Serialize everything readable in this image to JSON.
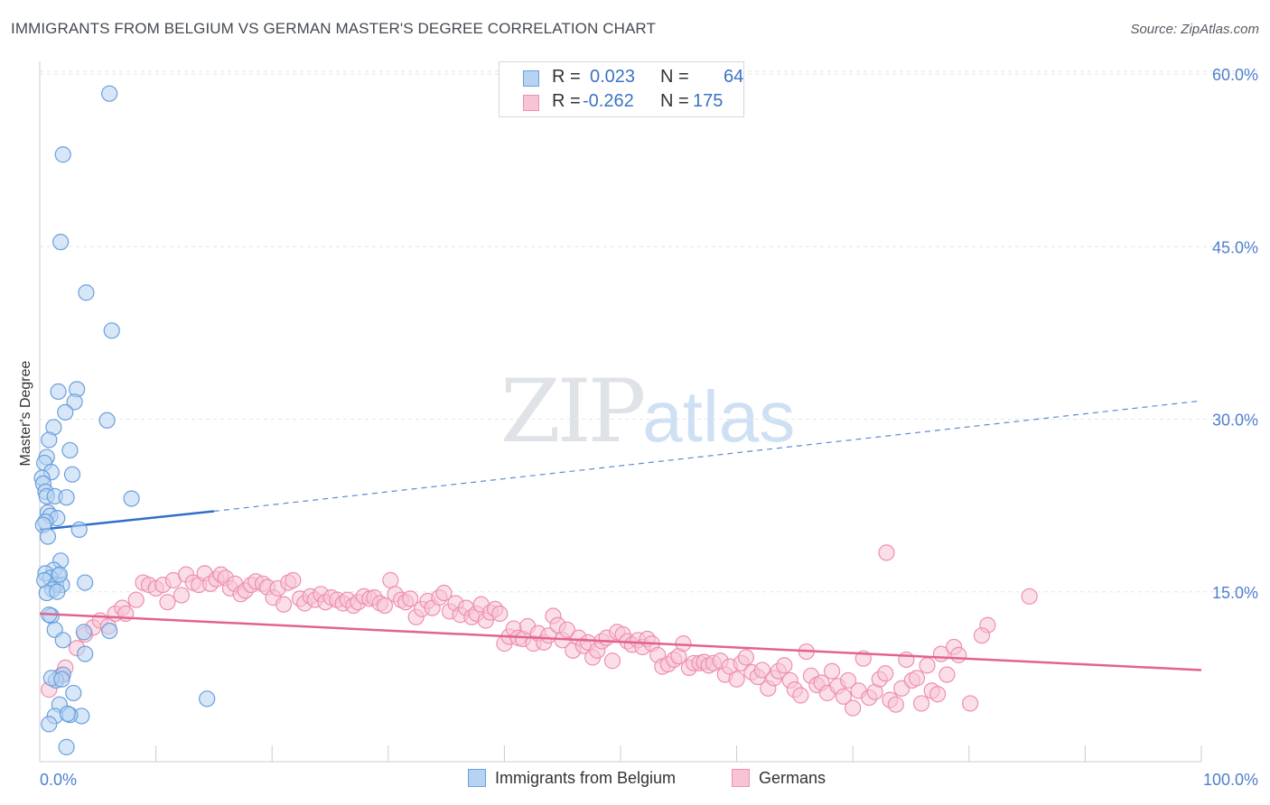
{
  "title": "IMMIGRANTS FROM BELGIUM VS GERMAN MASTER'S DEGREE CORRELATION CHART",
  "source": "Source: ZipAtlas.com",
  "watermark": {
    "zip": "ZIP",
    "atlas": "atlas"
  },
  "legend": {
    "rows": [
      {
        "r_label": "R =",
        "r_value": "0.023",
        "n_label": "N =",
        "n_value": "64"
      },
      {
        "r_label": "R =",
        "r_value": "-0.262",
        "n_label": "N =",
        "n_value": "175"
      }
    ]
  },
  "colors": {
    "blue_fill": "#b7d3f2",
    "blue_stroke": "#6a9fdc",
    "blue_line": "#2f6fc9",
    "pink_fill": "#f7c4d5",
    "pink_stroke": "#ee8fae",
    "pink_line": "#e2638f",
    "tick_text": "#4f7fcf",
    "grid": "#e3e6ea"
  },
  "chart_data": {
    "type": "scatter",
    "title": "IMMIGRANTS FROM BELGIUM VS GERMAN MASTER'S DEGREE CORRELATION CHART",
    "xlabel": "",
    "ylabel": "Master's Degree",
    "xlim": [
      0,
      100
    ],
    "ylim": [
      0,
      62
    ],
    "x_tick_labels": [
      "0.0%",
      "100.0%"
    ],
    "y_ticks": [
      15,
      30,
      45,
      60
    ],
    "y_tick_labels": [
      "15.0%",
      "30.0%",
      "45.0%",
      "60.0%"
    ],
    "grid": "horizontal dashed",
    "legend_position": "top-center",
    "series": [
      {
        "name": "Immigrants from Belgium",
        "r": 0.023,
        "n": 64,
        "trend": {
          "x0": 0,
          "y0": 20.4,
          "x1": 15,
          "y1": 22.0,
          "dashed_to": [
            100,
            31.6
          ]
        },
        "points": [
          [
            6.0,
            58.3
          ],
          [
            2.0,
            53.0
          ],
          [
            1.8,
            45.4
          ],
          [
            4.0,
            41.0
          ],
          [
            6.2,
            37.7
          ],
          [
            3.2,
            32.6
          ],
          [
            1.6,
            32.4
          ],
          [
            3.0,
            31.5
          ],
          [
            2.2,
            30.6
          ],
          [
            5.8,
            29.9
          ],
          [
            1.2,
            29.3
          ],
          [
            0.8,
            28.2
          ],
          [
            2.6,
            27.3
          ],
          [
            0.6,
            26.7
          ],
          [
            0.4,
            26.2
          ],
          [
            2.8,
            25.2
          ],
          [
            1.0,
            25.4
          ],
          [
            0.2,
            24.9
          ],
          [
            0.3,
            24.4
          ],
          [
            0.5,
            23.7
          ],
          [
            0.6,
            23.3
          ],
          [
            1.3,
            23.3
          ],
          [
            2.3,
            23.2
          ],
          [
            7.9,
            23.1
          ],
          [
            0.7,
            21.9
          ],
          [
            0.9,
            21.6
          ],
          [
            1.5,
            21.4
          ],
          [
            0.5,
            21.1
          ],
          [
            0.3,
            20.8
          ],
          [
            3.4,
            20.4
          ],
          [
            0.7,
            19.8
          ],
          [
            1.8,
            17.7
          ],
          [
            1.2,
            16.9
          ],
          [
            0.5,
            16.6
          ],
          [
            1.6,
            16.4
          ],
          [
            0.9,
            16.2
          ],
          [
            0.4,
            16.0
          ],
          [
            1.4,
            15.6
          ],
          [
            3.9,
            15.8
          ],
          [
            1.9,
            15.6
          ],
          [
            1.1,
            15.2
          ],
          [
            0.6,
            14.9
          ],
          [
            1.5,
            15.0
          ],
          [
            1.0,
            12.9
          ],
          [
            1.3,
            11.7
          ],
          [
            3.8,
            11.5
          ],
          [
            6.0,
            11.6
          ],
          [
            2.0,
            10.8
          ],
          [
            3.9,
            9.6
          ],
          [
            2.0,
            7.8
          ],
          [
            1.4,
            7.3
          ],
          [
            1.0,
            7.5
          ],
          [
            2.9,
            6.2
          ],
          [
            14.4,
            5.7
          ],
          [
            1.7,
            5.2
          ],
          [
            1.3,
            4.2
          ],
          [
            3.6,
            4.2
          ],
          [
            2.6,
            4.3
          ],
          [
            0.8,
            3.5
          ],
          [
            2.3,
            1.5
          ],
          [
            1.9,
            7.4
          ],
          [
            0.8,
            13.0
          ],
          [
            1.7,
            16.5
          ],
          [
            2.4,
            4.4
          ]
        ]
      },
      {
        "name": "Germans",
        "r": -0.262,
        "n": 175,
        "trend": {
          "x0": 0,
          "y0": 13.1,
          "x1": 100,
          "y1": 8.2
        },
        "points": [
          [
            0.8,
            6.5
          ],
          [
            1.8,
            7.7
          ],
          [
            2.2,
            8.4
          ],
          [
            3.2,
            10.1
          ],
          [
            3.9,
            11.3
          ],
          [
            4.6,
            11.9
          ],
          [
            5.2,
            12.5
          ],
          [
            5.9,
            12.0
          ],
          [
            6.5,
            13.1
          ],
          [
            7.1,
            13.6
          ],
          [
            7.4,
            13.1
          ],
          [
            8.3,
            14.3
          ],
          [
            8.9,
            15.8
          ],
          [
            9.4,
            15.6
          ],
          [
            10.0,
            15.3
          ],
          [
            10.6,
            15.6
          ],
          [
            11.0,
            14.1
          ],
          [
            11.5,
            16.0
          ],
          [
            12.2,
            14.7
          ],
          [
            12.6,
            16.5
          ],
          [
            13.2,
            15.8
          ],
          [
            13.7,
            15.6
          ],
          [
            14.2,
            16.6
          ],
          [
            14.7,
            15.7
          ],
          [
            15.2,
            16.1
          ],
          [
            15.6,
            16.5
          ],
          [
            16.0,
            16.2
          ],
          [
            16.4,
            15.3
          ],
          [
            16.8,
            15.7
          ],
          [
            17.3,
            14.8
          ],
          [
            17.7,
            15.1
          ],
          [
            18.2,
            15.6
          ],
          [
            18.6,
            15.9
          ],
          [
            19.2,
            15.7
          ],
          [
            19.6,
            15.4
          ],
          [
            20.1,
            14.5
          ],
          [
            20.5,
            15.3
          ],
          [
            21.0,
            13.9
          ],
          [
            21.4,
            15.8
          ],
          [
            21.8,
            16.0
          ],
          [
            22.4,
            14.4
          ],
          [
            22.8,
            14.0
          ],
          [
            23.3,
            14.6
          ],
          [
            23.7,
            14.3
          ],
          [
            24.2,
            14.8
          ],
          [
            24.6,
            14.1
          ],
          [
            25.1,
            14.5
          ],
          [
            25.6,
            14.3
          ],
          [
            26.1,
            14.0
          ],
          [
            26.5,
            14.3
          ],
          [
            27.0,
            13.8
          ],
          [
            27.4,
            14.1
          ],
          [
            27.9,
            14.6
          ],
          [
            28.4,
            14.4
          ],
          [
            28.8,
            14.5
          ],
          [
            29.3,
            14.0
          ],
          [
            29.7,
            13.8
          ],
          [
            30.2,
            16.0
          ],
          [
            30.6,
            14.8
          ],
          [
            31.1,
            14.3
          ],
          [
            31.5,
            14.1
          ],
          [
            31.9,
            14.4
          ],
          [
            32.4,
            12.8
          ],
          [
            32.9,
            13.5
          ],
          [
            33.4,
            14.2
          ],
          [
            33.8,
            13.6
          ],
          [
            34.4,
            14.5
          ],
          [
            34.8,
            14.9
          ],
          [
            35.3,
            13.3
          ],
          [
            35.8,
            14.0
          ],
          [
            36.2,
            13.0
          ],
          [
            36.7,
            13.6
          ],
          [
            37.2,
            12.8
          ],
          [
            37.6,
            13.1
          ],
          [
            38.0,
            13.9
          ],
          [
            38.4,
            12.5
          ],
          [
            38.8,
            13.2
          ],
          [
            39.2,
            13.5
          ],
          [
            39.6,
            13.1
          ],
          [
            40.0,
            10.5
          ],
          [
            40.4,
            11.1
          ],
          [
            40.8,
            11.8
          ],
          [
            41.2,
            11.0
          ],
          [
            41.6,
            10.9
          ],
          [
            42.0,
            12.0
          ],
          [
            42.5,
            10.5
          ],
          [
            42.9,
            11.4
          ],
          [
            43.4,
            10.6
          ],
          [
            43.8,
            11.2
          ],
          [
            44.2,
            12.9
          ],
          [
            44.6,
            12.1
          ],
          [
            45.0,
            10.8
          ],
          [
            45.4,
            11.7
          ],
          [
            45.9,
            9.9
          ],
          [
            46.4,
            11.0
          ],
          [
            46.8,
            10.3
          ],
          [
            47.2,
            10.6
          ],
          [
            47.6,
            9.3
          ],
          [
            48.0,
            9.9
          ],
          [
            48.4,
            10.7
          ],
          [
            48.8,
            11.0
          ],
          [
            49.3,
            9.0
          ],
          [
            49.7,
            11.5
          ],
          [
            50.2,
            11.3
          ],
          [
            50.6,
            10.7
          ],
          [
            51.0,
            10.4
          ],
          [
            51.5,
            10.8
          ],
          [
            51.9,
            10.2
          ],
          [
            52.3,
            10.9
          ],
          [
            52.7,
            10.5
          ],
          [
            53.2,
            9.5
          ],
          [
            53.6,
            8.5
          ],
          [
            54.1,
            8.7
          ],
          [
            54.6,
            9.1
          ],
          [
            55.0,
            9.4
          ],
          [
            55.4,
            10.5
          ],
          [
            55.9,
            8.4
          ],
          [
            56.3,
            8.8
          ],
          [
            56.8,
            8.8
          ],
          [
            57.2,
            8.9
          ],
          [
            57.6,
            8.6
          ],
          [
            58.0,
            8.8
          ],
          [
            58.6,
            9.0
          ],
          [
            59.0,
            7.8
          ],
          [
            59.4,
            8.5
          ],
          [
            60.0,
            7.4
          ],
          [
            60.4,
            8.8
          ],
          [
            60.8,
            9.3
          ],
          [
            61.3,
            8.0
          ],
          [
            61.8,
            7.6
          ],
          [
            62.2,
            8.2
          ],
          [
            62.7,
            6.6
          ],
          [
            63.2,
            7.5
          ],
          [
            63.6,
            8.1
          ],
          [
            64.1,
            8.6
          ],
          [
            64.6,
            7.3
          ],
          [
            65.0,
            6.5
          ],
          [
            65.5,
            6.0
          ],
          [
            66.0,
            9.8
          ],
          [
            66.4,
            7.7
          ],
          [
            66.9,
            6.9
          ],
          [
            67.3,
            7.1
          ],
          [
            67.8,
            6.2
          ],
          [
            68.2,
            8.1
          ],
          [
            68.7,
            6.8
          ],
          [
            69.2,
            5.9
          ],
          [
            69.6,
            7.3
          ],
          [
            70.0,
            4.9
          ],
          [
            70.5,
            6.4
          ],
          [
            70.9,
            9.2
          ],
          [
            71.4,
            5.8
          ],
          [
            71.9,
            6.3
          ],
          [
            72.3,
            7.4
          ],
          [
            72.8,
            7.9
          ],
          [
            73.2,
            5.6
          ],
          [
            73.7,
            5.2
          ],
          [
            74.2,
            6.6
          ],
          [
            74.6,
            9.1
          ],
          [
            75.1,
            7.3
          ],
          [
            75.5,
            7.5
          ],
          [
            75.9,
            5.3
          ],
          [
            76.4,
            8.6
          ],
          [
            76.8,
            6.4
          ],
          [
            77.3,
            6.1
          ],
          [
            77.6,
            9.6
          ],
          [
            78.1,
            7.8
          ],
          [
            78.7,
            10.2
          ],
          [
            79.1,
            9.5
          ],
          [
            80.1,
            5.3
          ],
          [
            72.9,
            18.4
          ],
          [
            81.6,
            12.1
          ],
          [
            85.2,
            14.6
          ],
          [
            81.1,
            11.2
          ]
        ]
      }
    ]
  },
  "bottom_legend": [
    {
      "label": "Immigrants from Belgium"
    },
    {
      "label": "Germans"
    }
  ]
}
